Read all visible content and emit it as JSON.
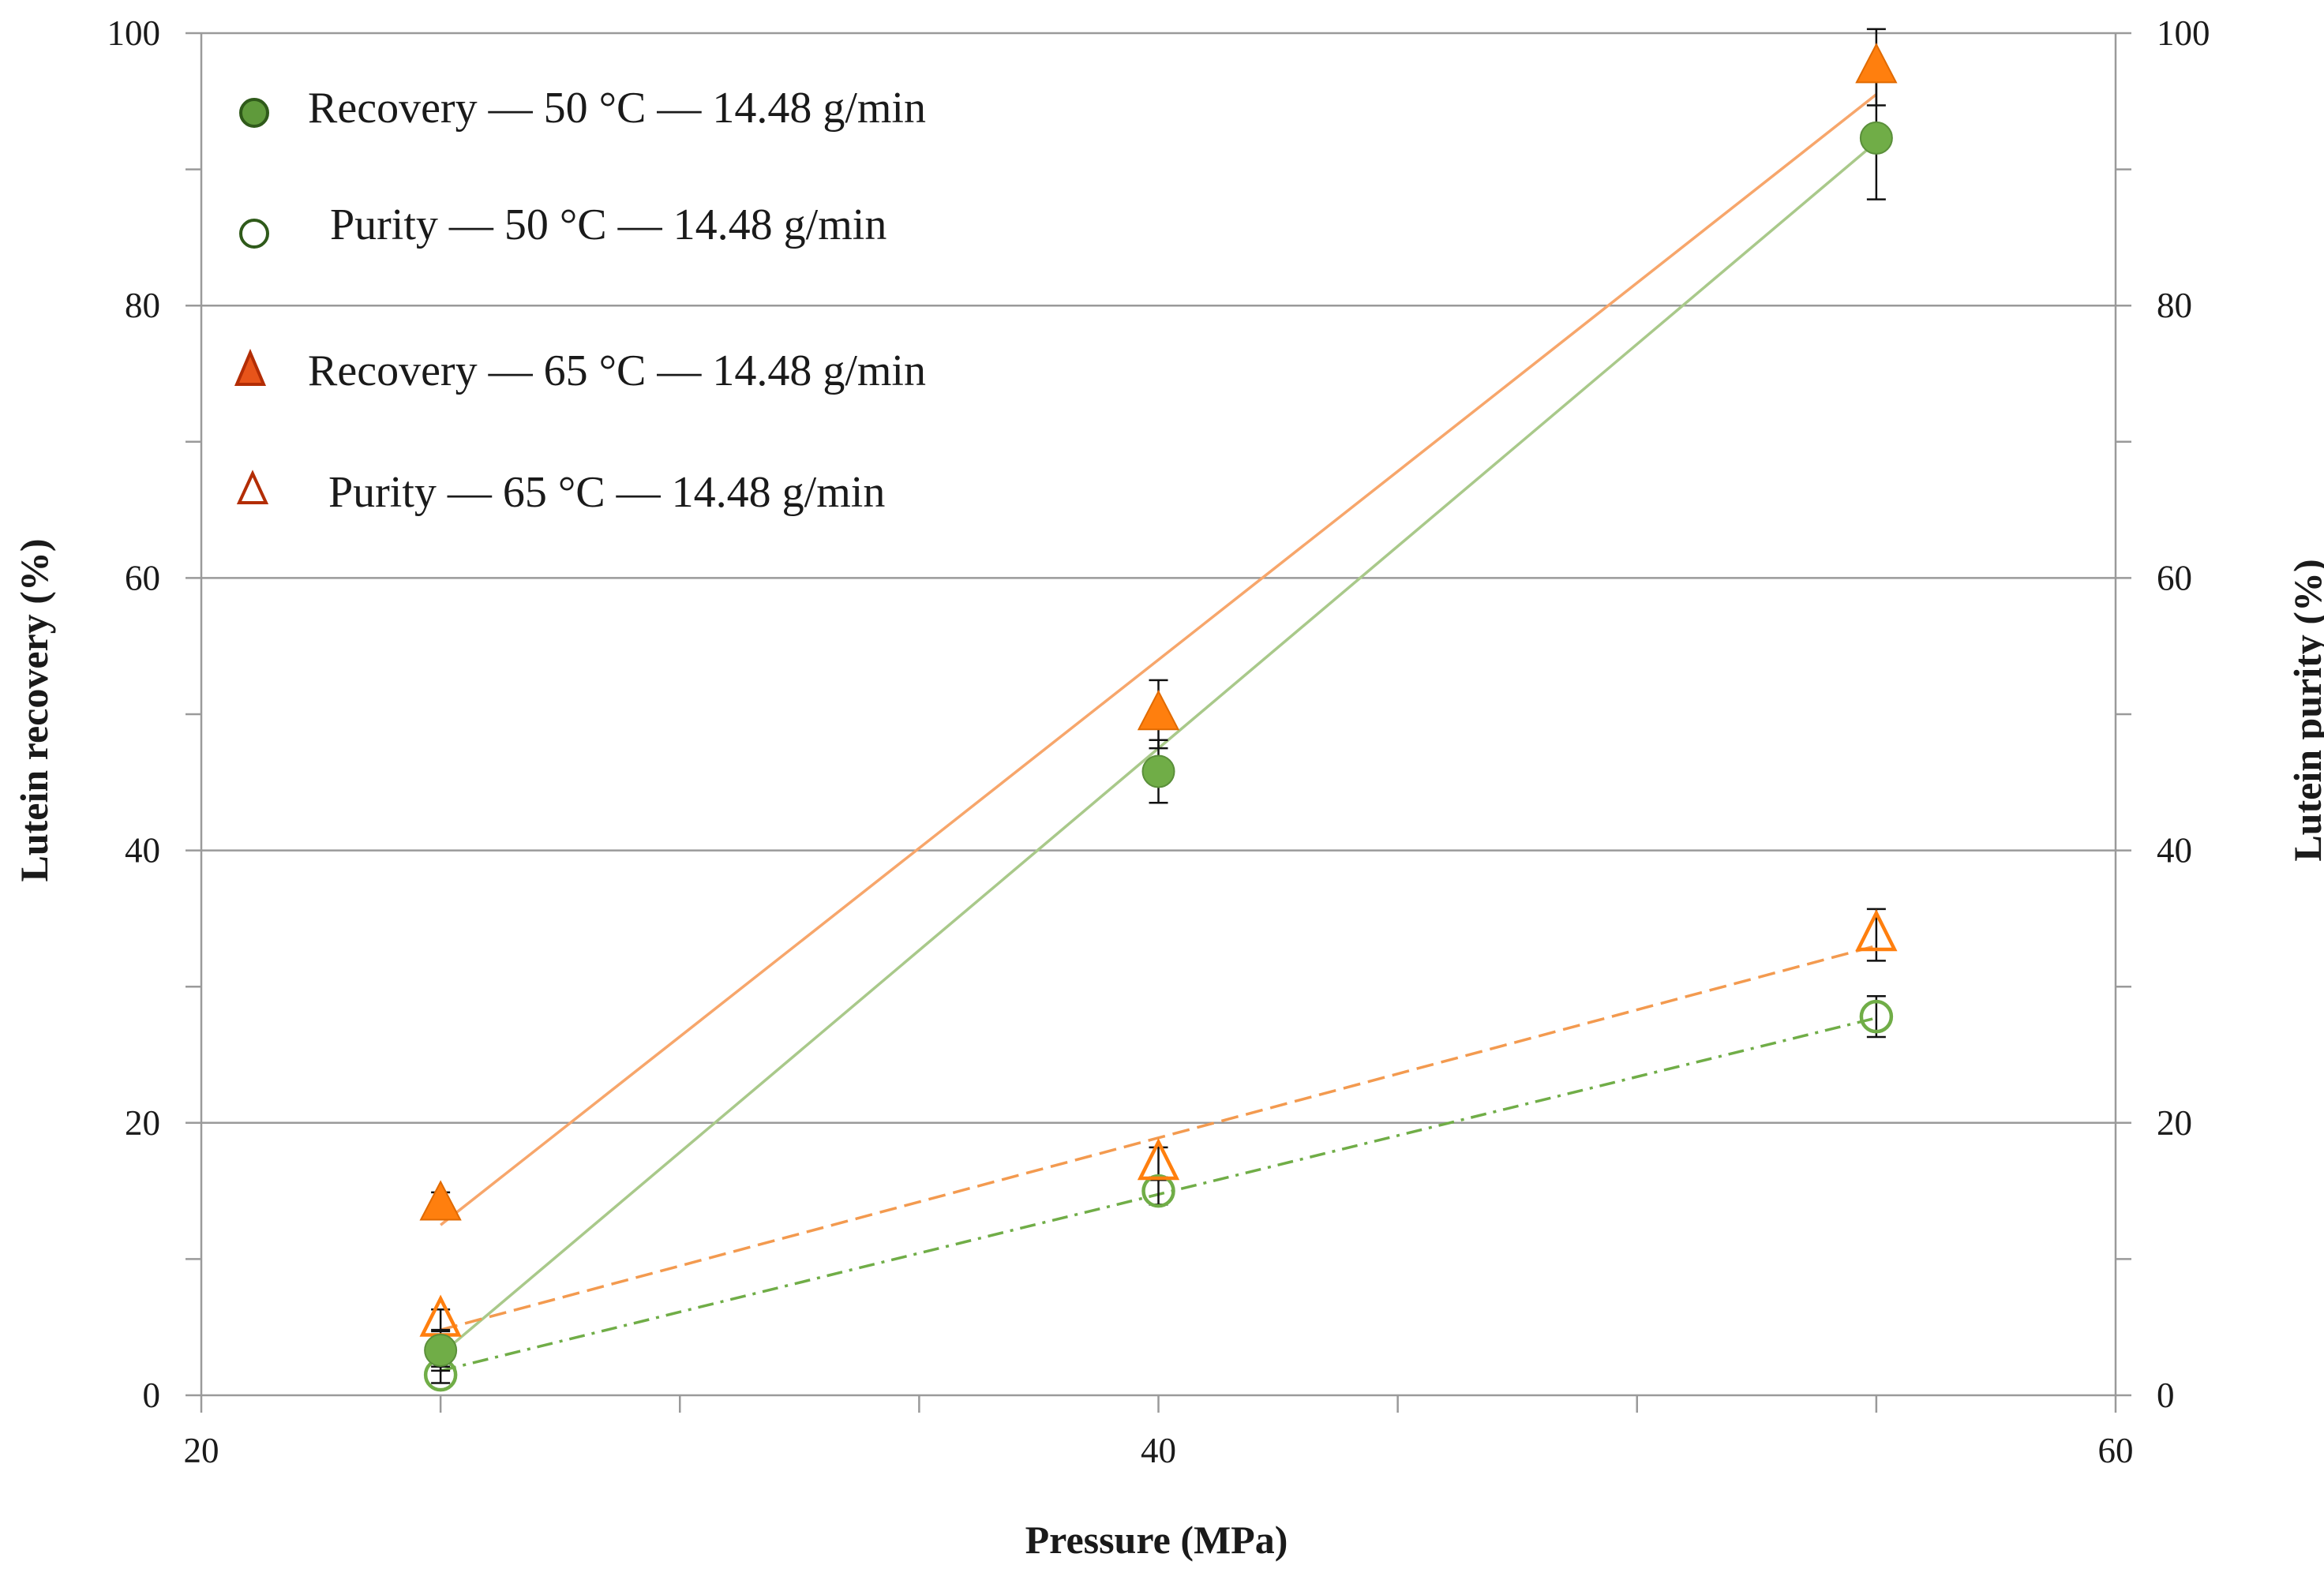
{
  "chart_data": {
    "type": "scatter",
    "xlabel": "Pressure (MPa)",
    "ylabel": "Lutein recovery (%)",
    "y2label": "Lutein purity (%)",
    "xlim": [
      20,
      60
    ],
    "ylim": [
      0,
      100
    ],
    "y2lim": [
      0,
      100
    ],
    "x_ticks": [
      20,
      40,
      60
    ],
    "y_ticks": [
      0,
      20,
      40,
      60,
      80,
      100
    ],
    "y2_ticks": [
      0,
      20,
      40,
      60,
      80,
      100
    ],
    "grid": true,
    "legend_position": "top-left",
    "series": [
      {
        "name": "Recovery — 50 °C — 14.48 g/min",
        "marker": "filled-circle",
        "axis": "left",
        "color": "#70ad47",
        "x": [
          25,
          40,
          55
        ],
        "values": [
          3.3,
          45.8,
          92.3
        ],
        "errors": [
          1.5,
          2.3,
          4.5
        ],
        "trend_line": {
          "style": "solid",
          "color": "#a9c98a",
          "x": [
            25,
            55
          ],
          "y": [
            3.0,
            92.0
          ]
        }
      },
      {
        "name": "Purity — 50 °C — 14.48 g/min",
        "marker": "open-circle",
        "axis": "right",
        "color": "#70ad47",
        "x": [
          25,
          40,
          55
        ],
        "values": [
          1.5,
          15.0,
          27.8
        ],
        "errors": [
          0.6,
          1.0,
          1.5
        ],
        "trend_line": {
          "style": "dash-dot",
          "color": "#70ad47",
          "x": [
            25,
            55
          ],
          "y": [
            1.8,
            27.7
          ]
        }
      },
      {
        "name": "Recovery — 65 °C — 14.48 g/min",
        "marker": "filled-triangle",
        "axis": "left",
        "color": "#ff7f0e",
        "x": [
          25,
          40,
          55
        ],
        "values": [
          14.0,
          50.0,
          97.5
        ],
        "errors": [
          0.9,
          2.5,
          2.8
        ],
        "trend_line": {
          "style": "solid",
          "color": "#f7a66b",
          "x": [
            25,
            55
          ],
          "y": [
            12.5,
            95.5
          ]
        }
      },
      {
        "name": "Purity — 65 °C — 14.48 g/min",
        "marker": "open-triangle",
        "axis": "right",
        "color": "#ff7f0e",
        "x": [
          25,
          40,
          55
        ],
        "values": [
          5.5,
          17.0,
          33.8
        ],
        "errors": [
          0.8,
          1.2,
          1.9
        ],
        "trend_line": {
          "style": "dashed",
          "color": "#f39a4f",
          "x": [
            25,
            55
          ],
          "y": [
            4.8,
            33.0
          ]
        }
      }
    ]
  }
}
